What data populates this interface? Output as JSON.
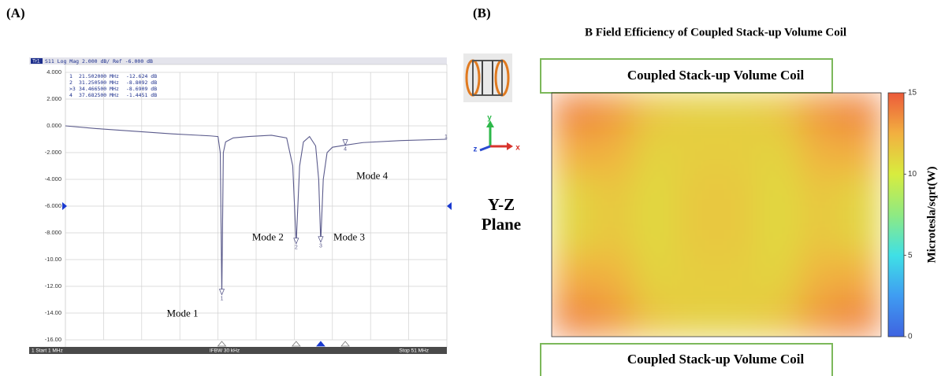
{
  "chart_data": [
    {
      "type": "line",
      "panel_label": "(A)",
      "trace_label": "Tr1",
      "header": "S11 Log Mag 2.000 dB/ Ref -6.000 dB",
      "footer_left": "1 Start 1 MHz",
      "footer_center": "IFBW 30 kHz",
      "footer_right": "Stop 51 MHz",
      "xlim": [
        1,
        51
      ],
      "xticks": [
        1,
        6,
        11,
        16,
        21,
        26,
        31,
        36,
        41,
        46,
        51
      ],
      "ylim": [
        -16,
        4
      ],
      "yticks": [
        {
          "value": 4,
          "label": "4.000"
        },
        {
          "value": 2,
          "label": "2.000"
        },
        {
          "value": 0,
          "label": "0.000"
        },
        {
          "value": -2,
          "label": "-2.000"
        },
        {
          "value": -4,
          "label": "-4.000"
        },
        {
          "value": -6,
          "label": "-6.000"
        },
        {
          "value": -8,
          "label": "-8.000"
        },
        {
          "value": -10,
          "label": "-10.00"
        },
        {
          "value": -12,
          "label": "-12.00"
        },
        {
          "value": -14,
          "label": "-14.00"
        },
        {
          "value": -16,
          "label": "-16.00"
        }
      ],
      "grid": true,
      "ref_level": -6,
      "color": "#5b5b8c",
      "trace_end_label": "1",
      "x": [
        1,
        5,
        10,
        15,
        20,
        21,
        21.3,
        21.502,
        21.7,
        22,
        23,
        25,
        28,
        30,
        30.8,
        31.25,
        31.7,
        32.2,
        33,
        33.8,
        34.2,
        34.4665,
        34.8,
        35.3,
        36,
        37.6825,
        40,
        45,
        51
      ],
      "values": [
        0,
        -0.2,
        -0.4,
        -0.6,
        -0.75,
        -0.8,
        -2,
        -12.624,
        -2,
        -1.2,
        -0.9,
        -0.8,
        -0.7,
        -0.9,
        -3,
        -8.8092,
        -3,
        -1.2,
        -0.8,
        -1.5,
        -4,
        -8.6909,
        -4,
        -2,
        -1.6,
        -1.4451,
        -1.25,
        -1.1,
        -1.0
      ],
      "table_ids": [
        "1",
        "2",
        ">3",
        "4"
      ],
      "markers": [
        {
          "id": "1",
          "freq": 21.502,
          "freq_label": "21.502000 MHz",
          "value": -12.624,
          "value_label": "-12.624 dB"
        },
        {
          "id": "2",
          "freq": 31.25,
          "freq_label": "31.250500 MHz",
          "value": -8.8092,
          "value_label": "-8.8092 dB"
        },
        {
          "id": "3",
          "freq": 34.4665,
          "freq_label": "34.466500 MHz",
          "value": -8.6909,
          "value_label": "-8.6909 dB"
        },
        {
          "id": "4",
          "freq": 37.6825,
          "freq_label": "37.682500 MHz",
          "value": -1.4451,
          "value_label": "-1.4451 dB"
        }
      ],
      "annotations": [
        "Mode 1",
        "Mode 2",
        "Mode 3",
        "Mode 4"
      ]
    },
    {
      "type": "heatmap",
      "panel_label": "(B)",
      "title": "B Field Efficiency of Coupled Stack-up Volume Coil",
      "top_label": "Coupled Stack-up Volume Coil",
      "bottom_label": "Coupled Stack-up Volume Coil",
      "side_label": [
        "Y-Z",
        "Plane"
      ],
      "axis_labels": [
        "y",
        "z",
        "x"
      ],
      "values": [
        [
          13.8,
          13.2,
          11.6,
          11.2,
          11.2,
          11.6,
          13.2,
          13.8
        ],
        [
          12.6,
          12.4,
          11.0,
          11.3,
          11.3,
          11.0,
          12.4,
          12.6
        ],
        [
          11.0,
          11.6,
          10.8,
          11.5,
          11.5,
          10.8,
          11.6,
          11.0
        ],
        [
          11.0,
          11.6,
          10.8,
          11.5,
          11.5,
          10.8,
          11.6,
          11.0
        ],
        [
          12.6,
          12.4,
          11.0,
          11.3,
          11.3,
          11.0,
          12.4,
          12.6
        ],
        [
          13.8,
          13.2,
          11.6,
          11.2,
          11.2,
          11.6,
          13.2,
          13.8
        ]
      ],
      "colorbar": {
        "label": "Microtesla/sqrt(W)",
        "lim": [
          0,
          15
        ],
        "ticks": [
          0,
          5,
          10,
          15
        ],
        "colors": [
          "#3f63e0",
          "#3f9cf2",
          "#3fe0e6",
          "#8fea82",
          "#d8ec3e",
          "#f2b040",
          "#ec5a3a"
        ]
      }
    }
  ]
}
